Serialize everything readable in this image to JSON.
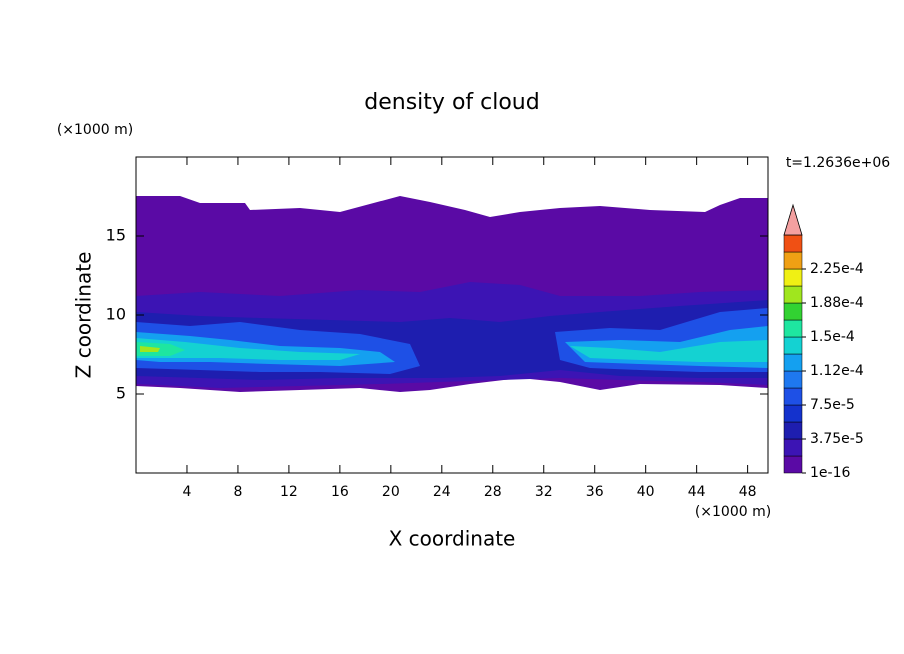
{
  "chart_data": {
    "type": "contour",
    "title": "density of cloud",
    "x_label": "X coordinate",
    "y_label": "Z coordinate",
    "x_unit": "(×1000 m)",
    "y_unit": "(×1000 m)",
    "time_label": "t=1.2636e+06",
    "xlim": [
      0,
      49.6
    ],
    "ylim": [
      0,
      20
    ],
    "xticks": [
      4,
      8,
      12,
      16,
      20,
      24,
      28,
      32,
      36,
      40,
      44,
      48
    ],
    "yticks": [
      5,
      10,
      15
    ],
    "colorbar_colors": [
      "#5a0aa5",
      "#3c14b4",
      "#1e1eaf",
      "#1432cd",
      "#1e50e6",
      "#1e78f0",
      "#14a0f0",
      "#14d2d2",
      "#1ee6a0",
      "#32d232",
      "#a0e61e",
      "#f0f014",
      "#f0a014",
      "#f05014"
    ],
    "colorbar_extend_color": "#f4a0a0",
    "colorbar_ticks": [
      {
        "value": 1e-16,
        "label": "1e-16"
      },
      {
        "value": 3.75e-05,
        "label": "3.75e-5"
      },
      {
        "value": 7.5e-05,
        "label": "7.5e-5"
      },
      {
        "value": 0.000112,
        "label": "1.12e-4"
      },
      {
        "value": 0.00015,
        "label": "1.5e-4"
      },
      {
        "value": 0.000188,
        "label": "1.88e-4"
      },
      {
        "value": 0.000225,
        "label": "2.25e-4"
      }
    ]
  }
}
